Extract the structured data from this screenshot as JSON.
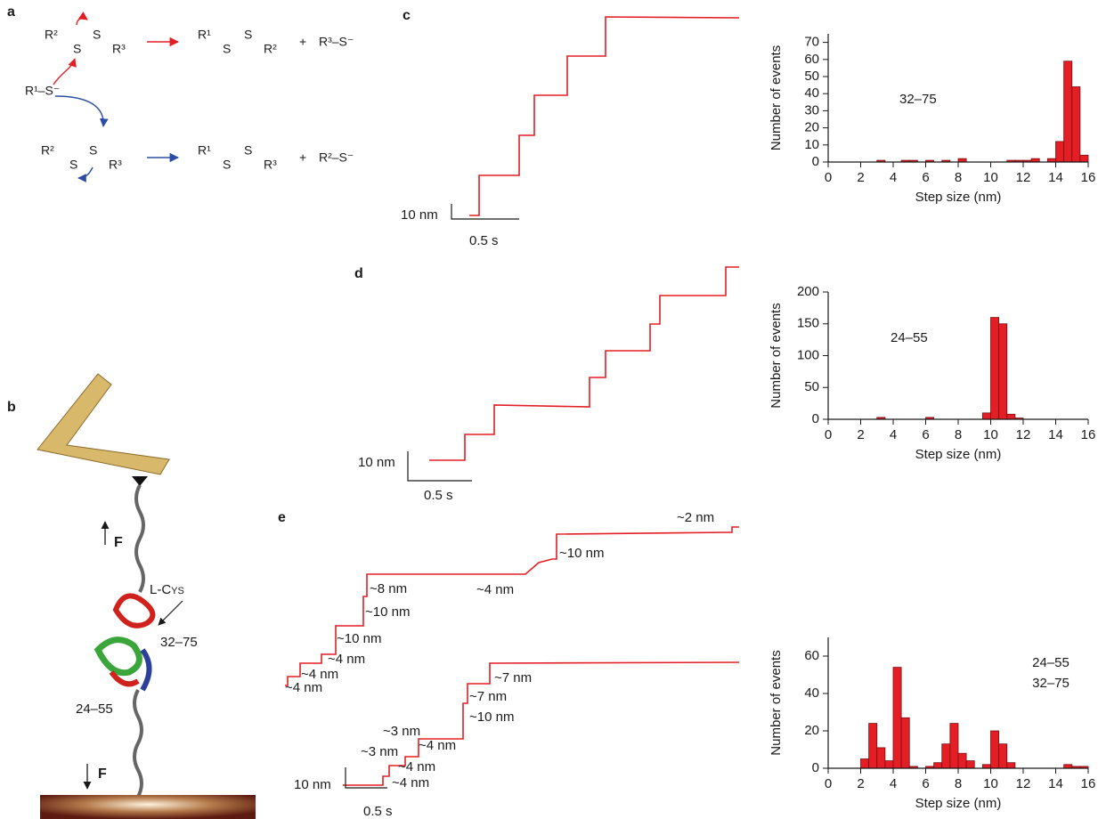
{
  "panel_a": {
    "label": "a",
    "reactant_top": [
      "R²",
      "S",
      "S",
      "R³"
    ],
    "product_top": [
      "R¹",
      "S",
      "S",
      "R²"
    ],
    "plus": "+",
    "thiolate_top": "R³–S⁻",
    "nucleophile": "R¹–S⁻",
    "reactant_bottom": [
      "R²",
      "S",
      "S",
      "R³"
    ],
    "product_bottom": [
      "R¹",
      "S",
      "S",
      "R³"
    ],
    "thiolate_bottom": "R²–S⁻"
  },
  "panel_b": {
    "label": "b",
    "force": "F",
    "residue": "L-Cys",
    "bridges": [
      "32–75",
      "24–55"
    ]
  },
  "panel_c": {
    "label": "c",
    "scale_y": "10 nm",
    "scale_x": "0.5 s"
  },
  "panel_d": {
    "label": "d",
    "scale_y": "10 nm",
    "scale_x": "0.5 s"
  },
  "panel_e": {
    "label": "e",
    "scale_y": "10 nm",
    "scale_x": "0.5 s",
    "top_steps": [
      "~4 nm",
      "~4 nm",
      "~4 nm",
      "~10 nm",
      "~10 nm",
      "~8 nm",
      "~4 nm",
      "~10 nm",
      "~2 nm"
    ],
    "bottom_steps": [
      "~4 nm",
      "~4 nm",
      "~3 nm",
      "~4 nm",
      "~3 nm",
      "~10 nm",
      "~7 nm",
      "~7 nm"
    ]
  },
  "chart_data": [
    {
      "type": "histogram",
      "annotation": [
        "32–75"
      ],
      "xlabel": "Step size (nm)",
      "ylabel": "Number of events",
      "color": "#e31e24",
      "bins": [
        0,
        0.5,
        1,
        1.5,
        2,
        2.5,
        3,
        3.5,
        4,
        4.5,
        5,
        5.5,
        6,
        6.5,
        7,
        7.5,
        8,
        8.5,
        9,
        9.5,
        10,
        10.5,
        11,
        11.5,
        12,
        12.5,
        13,
        13.5,
        14,
        14.5,
        15,
        15.5,
        16
      ],
      "counts": [
        0,
        0,
        0,
        0,
        0,
        0,
        1,
        0,
        0,
        1,
        1,
        0,
        1,
        0,
        1,
        0,
        2,
        0,
        0,
        0,
        0,
        0,
        1,
        1,
        1,
        2,
        0,
        2,
        12,
        59,
        44,
        4
      ],
      "xlim": [
        0,
        16
      ],
      "ylim": [
        0,
        75
      ],
      "xticks": [
        0,
        2,
        4,
        6,
        8,
        10,
        12,
        14,
        16
      ],
      "yticks": [
        0,
        10,
        20,
        30,
        40,
        50,
        60,
        70
      ]
    },
    {
      "type": "histogram",
      "annotation": [
        "24–55"
      ],
      "xlabel": "Step size (nm)",
      "ylabel": "Number of events",
      "color": "#e31e24",
      "bins": [
        0,
        0.5,
        1,
        1.5,
        2,
        2.5,
        3,
        3.5,
        4,
        4.5,
        5,
        5.5,
        6,
        6.5,
        7,
        7.5,
        8,
        8.5,
        9,
        9.5,
        10,
        10.5,
        11,
        11.5,
        12,
        12.5,
        13,
        13.5,
        14,
        14.5,
        15,
        15.5,
        16
      ],
      "counts": [
        0,
        0,
        0,
        0,
        0,
        0,
        3,
        0,
        0,
        0,
        0,
        0,
        3,
        0,
        0,
        0,
        0,
        0,
        0,
        10,
        160,
        150,
        8,
        2,
        0,
        0,
        0,
        0,
        0,
        0,
        0,
        0
      ],
      "xlim": [
        0,
        16
      ],
      "ylim": [
        0,
        200
      ],
      "xticks": [
        0,
        2,
        4,
        6,
        8,
        10,
        12,
        14,
        16
      ],
      "yticks": [
        0,
        50,
        100,
        150,
        200
      ]
    },
    {
      "type": "histogram",
      "annotation": [
        "24–55",
        "32–75"
      ],
      "xlabel": "Step size (nm)",
      "ylabel": "Number of events",
      "color": "#e31e24",
      "bins": [
        0,
        0.5,
        1,
        1.5,
        2,
        2.5,
        3,
        3.5,
        4,
        4.5,
        5,
        5.5,
        6,
        6.5,
        7,
        7.5,
        8,
        8.5,
        9,
        9.5,
        10,
        10.5,
        11,
        11.5,
        12,
        12.5,
        13,
        13.5,
        14,
        14.5,
        15,
        15.5,
        16
      ],
      "counts": [
        0,
        0,
        0,
        0,
        5,
        24,
        11,
        4,
        54,
        27,
        1,
        0,
        1,
        3,
        13,
        24,
        8,
        4,
        0,
        2,
        20,
        13,
        3,
        0,
        0,
        0,
        0,
        0,
        0,
        2,
        1,
        1
      ],
      "xlim": [
        0,
        16
      ],
      "ylim": [
        0,
        70
      ],
      "xticks": [
        0,
        2,
        4,
        6,
        8,
        10,
        12,
        14,
        16
      ],
      "yticks": [
        0,
        20,
        40,
        60
      ]
    }
  ]
}
